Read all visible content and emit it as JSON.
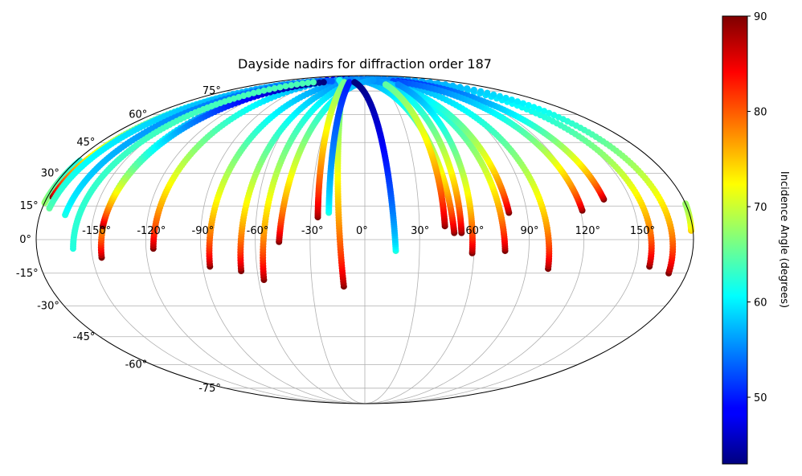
{
  "chart_data": {
    "type": "scatter",
    "projection": "mollweide",
    "title": "Dayside nadirs for diffraction order 187",
    "x_tick_labels": [
      "-150°",
      "-120°",
      "-90°",
      "-60°",
      "-30°",
      "0°",
      "30°",
      "60°",
      "90°",
      "120°",
      "150°"
    ],
    "x_tick_values": [
      -150,
      -120,
      -90,
      -60,
      -30,
      0,
      30,
      60,
      90,
      120,
      150
    ],
    "y_tick_labels": [
      "-75°",
      "-60°",
      "-45°",
      "-30°",
      "-15°",
      "0°",
      "15°",
      "30°",
      "45°",
      "60°",
      "75°"
    ],
    "y_tick_values": [
      -75,
      -60,
      -45,
      -30,
      -15,
      0,
      15,
      30,
      45,
      60,
      75
    ],
    "grid": true,
    "colorbar": {
      "label": "Incidence Angle (degrees)",
      "colormap": "jet",
      "min": 43,
      "max": 90,
      "tick_values": [
        50,
        60,
        70,
        80,
        90
      ],
      "tick_labels": [
        "50",
        "60",
        "70",
        "80",
        "90"
      ]
    },
    "color_variable": "incidence angle (degrees)",
    "tracks": [
      {
        "lon_start": -145,
        "lat_start": -8,
        "lon_end": -20,
        "lat_end": 84,
        "inc_start": 90,
        "inc_end": 47
      },
      {
        "lon_start": -116,
        "lat_start": -4,
        "lon_end": 10,
        "lat_end": 84,
        "inc_start": 90,
        "inc_end": 54
      },
      {
        "lon_start": -86,
        "lat_start": -12,
        "lon_end": 40,
        "lat_end": 84,
        "inc_start": 90,
        "inc_end": 53
      },
      {
        "lon_start": -69,
        "lat_start": -14,
        "lon_end": 60,
        "lat_end": 84,
        "inc_start": 90,
        "inc_end": 53
      },
      {
        "lon_start": -57,
        "lat_start": -18,
        "lon_end": 75,
        "lat_end": 84,
        "inc_start": 90,
        "inc_end": 55
      },
      {
        "lon_start": -12,
        "lat_start": -21,
        "lon_end": -60,
        "lat_end": 84,
        "inc_start": 90,
        "inc_end": 62
      },
      {
        "lon_start": 49,
        "lat_start": 3,
        "lon_end": -20,
        "lat_end": 84,
        "inc_start": 90,
        "inc_end": 56
      },
      {
        "lon_start": 77,
        "lat_start": -5,
        "lon_end": -5,
        "lat_end": 84,
        "inc_start": 90,
        "inc_end": 55
      },
      {
        "lon_start": 102,
        "lat_start": -13,
        "lon_end": 20,
        "lat_end": 84,
        "inc_start": 90,
        "inc_end": 55
      },
      {
        "lon_start": 158,
        "lat_start": -12,
        "lon_end": 40,
        "lat_end": 84,
        "inc_start": 90,
        "inc_end": 55
      },
      {
        "lon_start": 170,
        "lat_start": -15,
        "lon_end": 55,
        "lat_end": 84,
        "inc_start": 90,
        "inc_end": 55
      },
      {
        "lon_start": 179,
        "lat_start": 4,
        "lon_end": -178,
        "lat_end": 36,
        "inc_start": 75,
        "inc_end": 62
      },
      {
        "lon_start": 135,
        "lat_start": 18,
        "lon_end": 70,
        "lat_end": 83,
        "inc_start": 90,
        "inc_end": 50
      },
      {
        "lon_start": 121,
        "lat_start": 13,
        "lon_end": 60,
        "lat_end": 83,
        "inc_start": 90,
        "inc_end": 52
      },
      {
        "lon_start": 80,
        "lat_start": 12,
        "lon_end": 10,
        "lat_end": 84,
        "inc_start": 90,
        "inc_end": 55
      },
      {
        "lon_start": -47,
        "lat_start": -1,
        "lon_end": 20,
        "lat_end": 84,
        "inc_start": 90,
        "inc_end": 56
      },
      {
        "lon_start": -177,
        "lat_start": 19,
        "lon_end": -90,
        "lat_end": 83,
        "inc_start": 90,
        "inc_end": 53
      },
      {
        "lon_start": -176,
        "lat_start": 14,
        "lon_end": -80,
        "lat_end": 83,
        "inc_start": 65,
        "inc_end": 56
      },
      {
        "lon_start": -166,
        "lat_start": 11,
        "lon_end": -70,
        "lat_end": 83,
        "inc_start": 62,
        "inc_end": 53
      },
      {
        "lon_start": -144,
        "lat_start": 6,
        "lon_end": -80,
        "lat_end": 82,
        "inc_start": 90,
        "inc_end": 43
      },
      {
        "lon_start": -26,
        "lat_start": 10,
        "lon_end": -40,
        "lat_end": 82,
        "inc_start": 90,
        "inc_end": 66
      },
      {
        "lon_start": -20,
        "lat_start": 12,
        "lon_end": -30,
        "lat_end": 82,
        "inc_start": 62,
        "inc_end": 50
      },
      {
        "lon_start": 17,
        "lat_start": -5,
        "lon_end": -20,
        "lat_end": 82,
        "inc_start": 62,
        "inc_end": 43
      },
      {
        "lon_start": 53,
        "lat_start": 3,
        "lon_end": 42,
        "lat_end": 80,
        "inc_start": 90,
        "inc_end": 58
      },
      {
        "lon_start": 44,
        "lat_start": 6,
        "lon_end": 35,
        "lat_end": 80,
        "inc_start": 90,
        "inc_end": 65
      },
      {
        "lon_start": 59,
        "lat_start": -6,
        "lon_end": 56,
        "lat_end": 80,
        "inc_start": 90,
        "inc_end": 55
      },
      {
        "lon_start": -160,
        "lat_start": -4,
        "lon_end": -100,
        "lat_end": 82,
        "inc_start": 62,
        "inc_end": 64
      }
    ]
  }
}
